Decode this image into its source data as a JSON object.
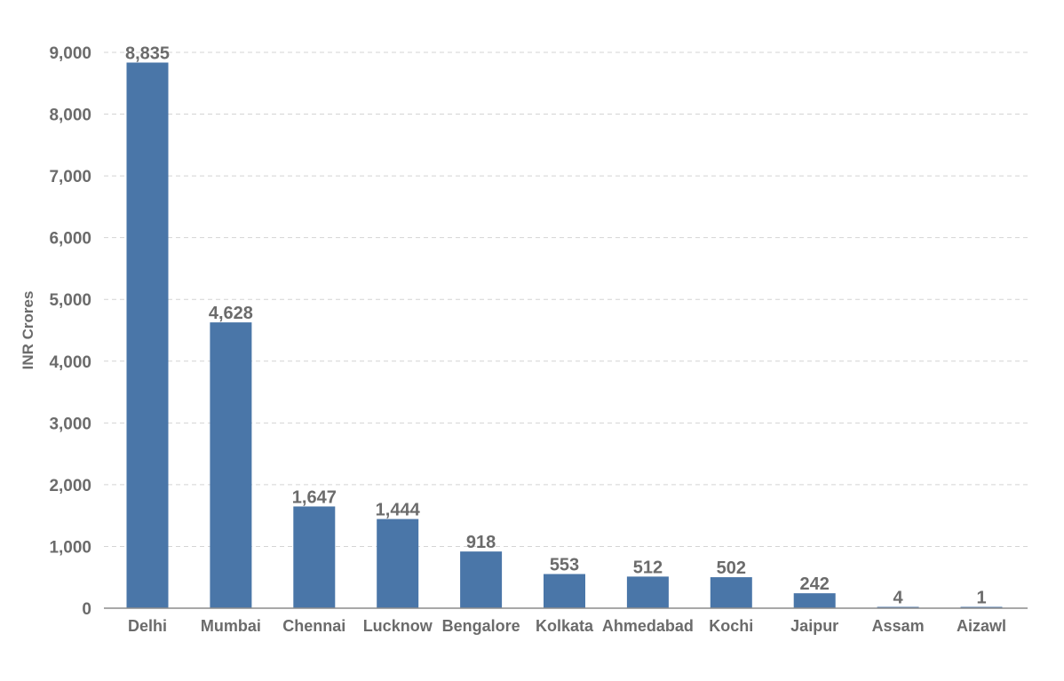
{
  "chart_data": {
    "type": "bar",
    "title": "",
    "xlabel": "",
    "ylabel": "INR Crores",
    "ylim": [
      0,
      9000
    ],
    "yticks": [
      0,
      1000,
      2000,
      3000,
      4000,
      5000,
      6000,
      7000,
      8000,
      9000
    ],
    "ytick_labels": [
      "0",
      "1,000",
      "2,000",
      "3,000",
      "4,000",
      "5,000",
      "6,000",
      "7,000",
      "8,000",
      "9,000"
    ],
    "categories": [
      "Delhi",
      "Mumbai",
      "Chennai",
      "Lucknow",
      "Bengalore",
      "Kolkata",
      "Ahmedabad",
      "Kochi",
      "Jaipur",
      "Assam",
      "Aizawl"
    ],
    "values": [
      8835,
      4628,
      1647,
      1444,
      918,
      553,
      512,
      502,
      242,
      4,
      1
    ],
    "value_labels": [
      "8,835",
      "4,628",
      "1,647",
      "1,444",
      "918",
      "553",
      "512",
      "502",
      "242",
      "4",
      "1"
    ],
    "bar_color": "#4a76a8",
    "grid": true,
    "grid_style": "dashed",
    "legend": "none"
  }
}
